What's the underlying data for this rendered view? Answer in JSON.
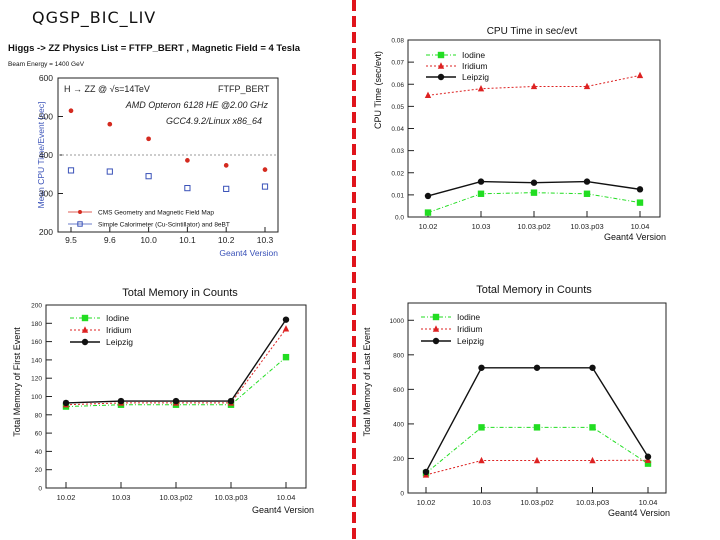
{
  "slide": {
    "title": "QGSP_BIC_LIV"
  },
  "chart_data": [
    {
      "type": "scatter",
      "id": "cpu-mean",
      "header": "Higgs -> ZZ Physics List = FTFP_BERT , Magnetic Field = 4 Tesla",
      "subheader": "Beam Energy = 1400 GeV",
      "box_label_left": "H → ZZ @ √s=14TeV",
      "box_label_right": "FTFP_BERT",
      "annotation_1": "AMD Opteron 6128 HE @2.00 GHz",
      "annotation_2": "GCC4.9.2/Linux x86_64",
      "ylabel": "Mean CPU Time/Event [sec]",
      "xlabel": "Geant4 Version",
      "categories": [
        "9.5",
        "9.6",
        "10.0",
        "10.1",
        "10.2",
        "10.3"
      ],
      "ylim": [
        200,
        600
      ],
      "yticks": [
        200,
        300,
        400,
        500,
        600
      ],
      "reference_line": 400,
      "series": [
        {
          "name": "CMS Geometry and Magnetic Field Map",
          "color": "#d42a1f",
          "marker": "filled-circle",
          "values": [
            515,
            480,
            442,
            386,
            373,
            362
          ]
        },
        {
          "name": "Simple Calorimeter (Cu-Scintillator) and 8eBT",
          "color": "#3a52b8",
          "marker": "open-square",
          "values": [
            360,
            357,
            345,
            314,
            312,
            318
          ]
        }
      ]
    },
    {
      "type": "line",
      "id": "cpu-time",
      "title": "CPU Time in sec/evt",
      "ylabel": "CPU Time (sec/evt)",
      "xlabel": "Geant4 Version",
      "categories": [
        "10.02",
        "10.03",
        "10.03.p02",
        "10.03.p03",
        "10.04"
      ],
      "ylim": [
        0,
        0.08
      ],
      "yticks": [
        0,
        0.01,
        0.02,
        0.03,
        0.04,
        0.05,
        0.06,
        0.07,
        0.08
      ],
      "ytick_labels": [
        "0.0",
        "0.01",
        "0.02",
        "0.03",
        "0.04",
        "0.05",
        "0.06",
        "0.07",
        "0.08"
      ],
      "series": [
        {
          "name": "Iodine",
          "color": "#22dd22",
          "dash": "4 2 1 2",
          "marker": "square",
          "values": [
            0.002,
            0.0105,
            0.011,
            0.0105,
            0.0065
          ]
        },
        {
          "name": "Iridium",
          "color": "#dd2222",
          "dash": "2 2",
          "marker": "triangle",
          "values": [
            0.055,
            0.058,
            0.059,
            0.059,
            0.064
          ]
        },
        {
          "name": "Leipzig",
          "color": "#111111",
          "dash": "",
          "marker": "circle",
          "values": [
            0.0095,
            0.016,
            0.0155,
            0.016,
            0.0125
          ]
        }
      ]
    },
    {
      "type": "line",
      "id": "mem-first",
      "title": "Total Memory in Counts",
      "ylabel": "Total Memory of First Event",
      "xlabel": "Geant4 Version",
      "categories": [
        "10.02",
        "10.03",
        "10.03.p02",
        "10.03.p03",
        "10.04"
      ],
      "ylim": [
        0,
        200
      ],
      "yticks": [
        0,
        20,
        40,
        60,
        80,
        100,
        120,
        140,
        160,
        180,
        200
      ],
      "series": [
        {
          "name": "Iodine",
          "color": "#22dd22",
          "dash": "4 2 1 2",
          "marker": "square",
          "values": [
            89,
            91,
            91,
            91,
            143
          ]
        },
        {
          "name": "Iridium",
          "color": "#dd2222",
          "dash": "2 2",
          "marker": "triangle",
          "values": [
            91,
            93,
            93,
            93,
            174
          ]
        },
        {
          "name": "Leipzig",
          "color": "#111111",
          "dash": "",
          "marker": "circle",
          "values": [
            93,
            95,
            95,
            95,
            184
          ]
        }
      ]
    },
    {
      "type": "line",
      "id": "mem-last",
      "title": "Total Memory in Counts",
      "ylabel": "Total Memory of Last Event",
      "xlabel": "Geant4 Version",
      "categories": [
        "10.02",
        "10.03",
        "10.03.p02",
        "10.03.p03",
        "10.04"
      ],
      "ylim": [
        0,
        1100
      ],
      "yticks": [
        0,
        200,
        400,
        600,
        800,
        1000
      ],
      "series": [
        {
          "name": "Iodine",
          "color": "#22dd22",
          "dash": "4 2 1 2",
          "marker": "square",
          "values": [
            115,
            380,
            380,
            380,
            170
          ]
        },
        {
          "name": "Iridium",
          "color": "#dd2222",
          "dash": "2 2",
          "marker": "triangle",
          "values": [
            105,
            188,
            188,
            188,
            190
          ]
        },
        {
          "name": "Leipzig",
          "color": "#111111",
          "dash": "",
          "marker": "circle",
          "values": [
            122,
            725,
            725,
            725,
            210
          ]
        }
      ]
    }
  ]
}
